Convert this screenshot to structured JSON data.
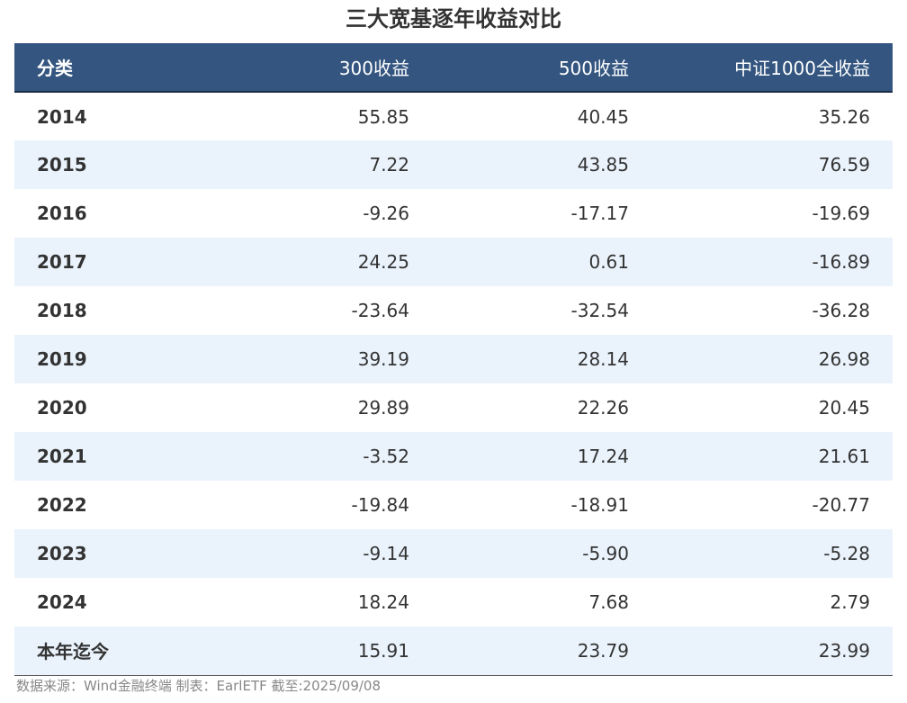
{
  "chart_data": {
    "type": "table",
    "title": "三大宽基逐年收益对比",
    "columns": [
      "分类",
      "300收益",
      "500收益",
      "中证1000全收益"
    ],
    "rows": [
      [
        "2014",
        "55.85",
        "40.45",
        "35.26"
      ],
      [
        "2015",
        "7.22",
        "43.85",
        "76.59"
      ],
      [
        "2016",
        "-9.26",
        "-17.17",
        "-19.69"
      ],
      [
        "2017",
        "24.25",
        "0.61",
        "-16.89"
      ],
      [
        "2018",
        "-23.64",
        "-32.54",
        "-36.28"
      ],
      [
        "2019",
        "39.19",
        "28.14",
        "26.98"
      ],
      [
        "2020",
        "29.89",
        "22.26",
        "20.45"
      ],
      [
        "2021",
        "-3.52",
        "17.24",
        "21.61"
      ],
      [
        "2022",
        "-19.84",
        "-18.91",
        "-20.77"
      ],
      [
        "2023",
        "-9.14",
        "-5.90",
        "-5.28"
      ],
      [
        "2024",
        "18.24",
        "7.68",
        "2.79"
      ],
      [
        "本年迄今",
        "15.91",
        "23.79",
        "23.99"
      ]
    ],
    "source": "数据来源：Wind金融终端 制表：EarlETF 截至:2025/09/08",
    "colors": {
      "header_bg": "#33557f",
      "stripe_bg": "#eaf3fc"
    }
  }
}
